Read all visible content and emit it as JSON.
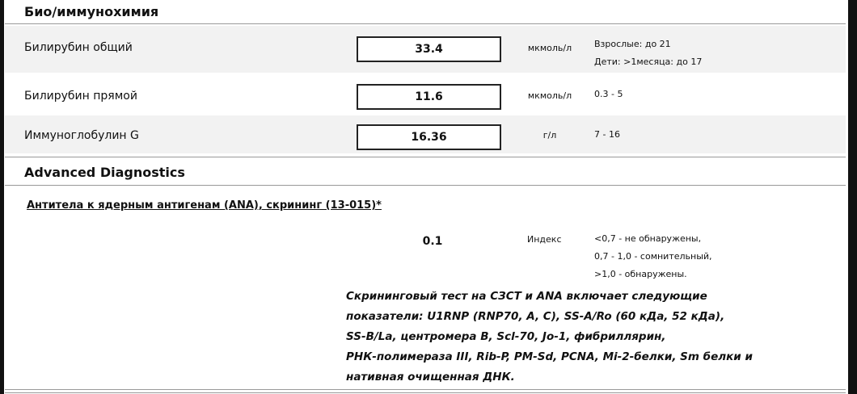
{
  "sections": [
    {
      "title": "Био/иммунохимия",
      "rows": [
        {
          "name": "Билирубин общий",
          "value": "33.4",
          "unit": "мкмоль/л",
          "reference": [
            "Взрослые: до 21",
            "Дети: >1месяца: до 17"
          ]
        },
        {
          "name": "Билирубин прямой",
          "value": "11.6",
          "unit": "мкмоль/л",
          "reference": [
            "0.3 - 5"
          ]
        },
        {
          "name": "Иммуноглобулин G",
          "value": "16.36",
          "unit": "г/л",
          "reference": [
            "7 - 16"
          ]
        }
      ]
    },
    {
      "title": "Advanced Diagnostics",
      "rows": [
        {
          "name": "Антитела к ядерным антигенам (ANA), скрининг (13-015)*",
          "value": "0.1",
          "unit": "Индекс",
          "reference": [
            "<0,7 - не обнаружены,",
            "0,7 - 1,0 - сомнительный,",
            ">1,0 - обнаружены."
          ],
          "comment": [
            "Скрининговый тест на СЗСТ и ANA включает следующие",
            "показатели: U1RNP (RNP70, A, C), SS-A/Ro (60 кДа, 52 кДа),",
            "SS-B/La, центромера B, Scl-70, Jo-1, фибриллярин,",
            "РНК-полимераза III, Rib-P, PM-Sd, PCNA, Mi-2-белки, Sm белки и",
            "нативная очищенная ДНК."
          ]
        }
      ]
    }
  ]
}
